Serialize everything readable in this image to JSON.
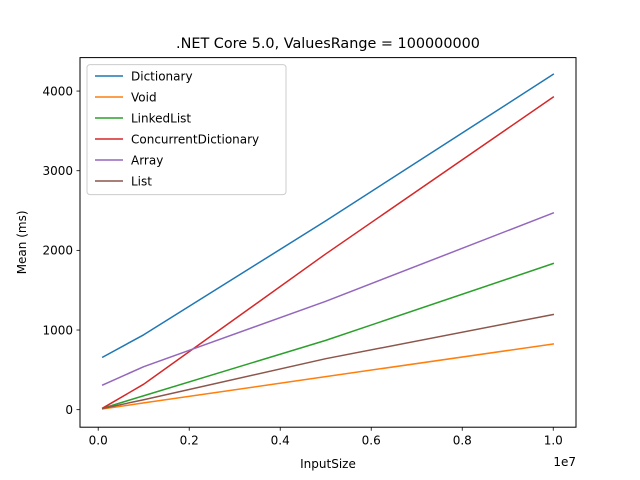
{
  "chart_data": {
    "type": "line",
    "title": ".NET Core 5.0, ValuesRange = 100000000",
    "xlabel": "InputSize",
    "ylabel": "Mean (ms)",
    "x_offset_label": "1e7",
    "x": [
      100000,
      1000000,
      5000000,
      10000000
    ],
    "xlim": [
      -400000,
      10500000
    ],
    "ylim": [
      -220,
      4420
    ],
    "xticks": [
      0,
      2000000,
      4000000,
      6000000,
      8000000,
      10000000
    ],
    "xtick_labels": [
      "0.0",
      "0.2",
      "0.4",
      "0.6",
      "0.8",
      "1.0"
    ],
    "yticks": [
      0,
      1000,
      2000,
      3000,
      4000
    ],
    "ytick_labels": [
      "0",
      "1000",
      "2000",
      "3000",
      "4000"
    ],
    "grid": false,
    "legend_position": "upper-left",
    "series": [
      {
        "name": "Dictionary",
        "color": "#1f77b4",
        "values": [
          660,
          940,
          2370,
          4210
        ]
      },
      {
        "name": "Void",
        "color": "#ff7f0e",
        "values": [
          10,
          85,
          415,
          825
        ]
      },
      {
        "name": "LinkedList",
        "color": "#2ca02c",
        "values": [
          18,
          175,
          870,
          1835
        ]
      },
      {
        "name": "ConcurrentDictionary",
        "color": "#d62728",
        "values": [
          20,
          320,
          1955,
          3925
        ]
      },
      {
        "name": "Array",
        "color": "#9467bd",
        "values": [
          310,
          540,
          1360,
          2470
        ]
      },
      {
        "name": "List",
        "color": "#8c564b",
        "values": [
          15,
          125,
          640,
          1195
        ]
      }
    ]
  }
}
